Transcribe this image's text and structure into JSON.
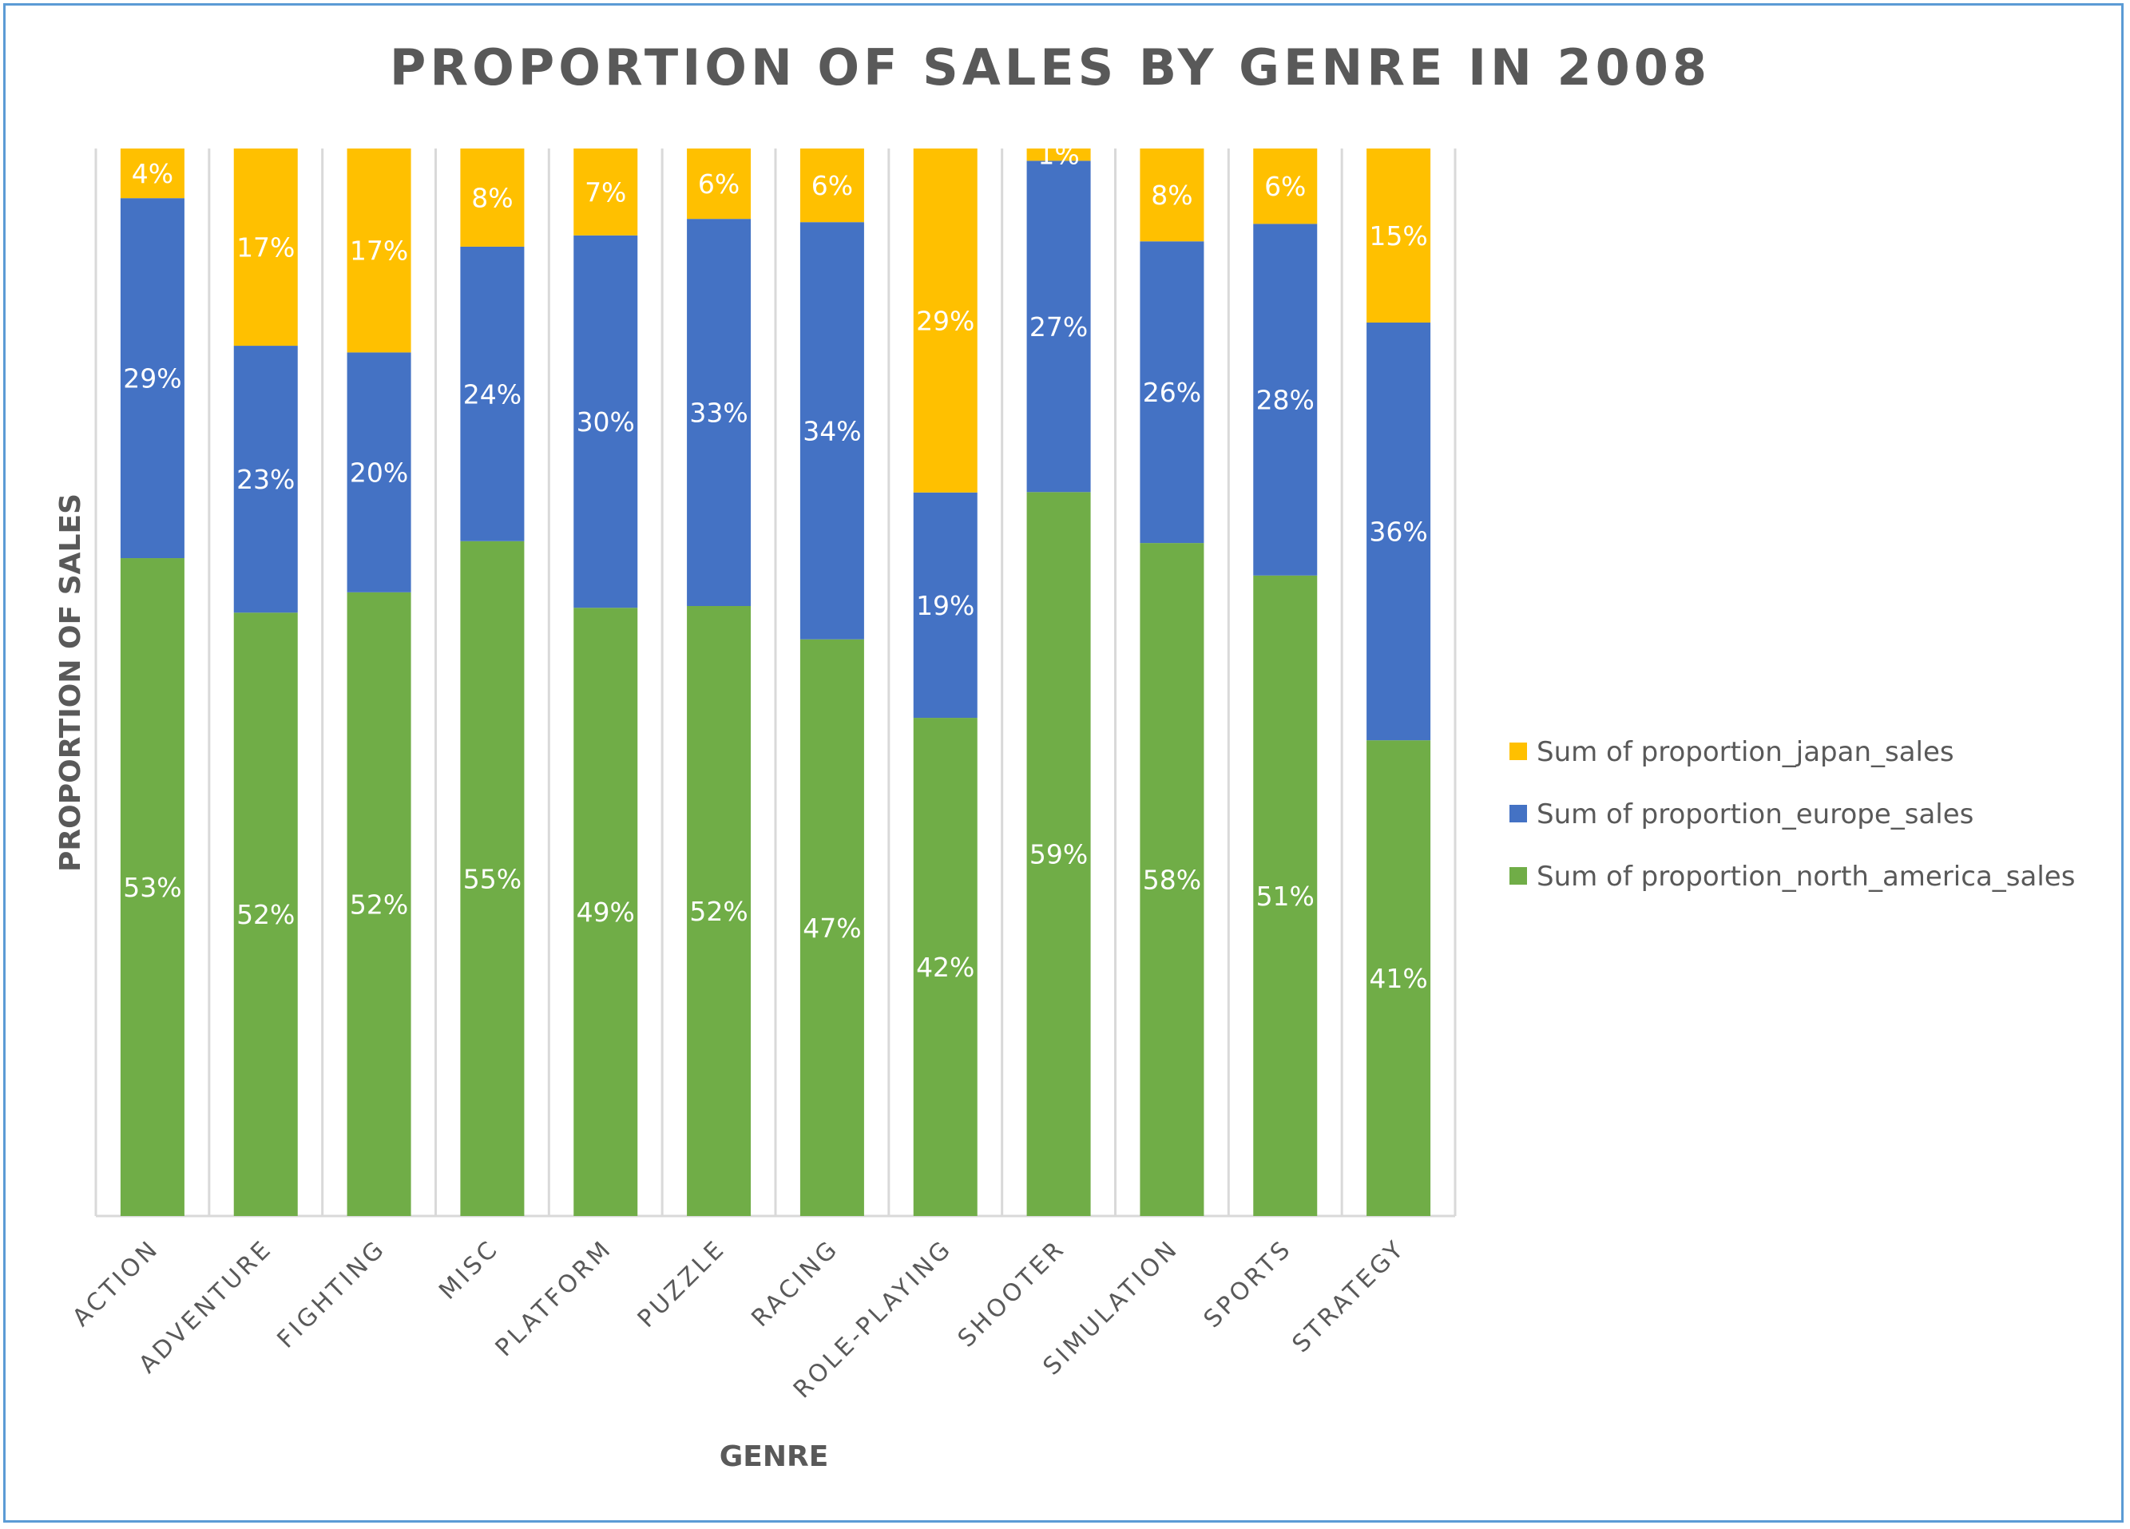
{
  "chart_data": {
    "type": "bar",
    "stacked": true,
    "title": "PROPORTION OF SALES BY GENRE IN 2008",
    "xlabel": "GENRE",
    "ylabel": "PROPORTION OF SALES",
    "categories": [
      "ACTION",
      "ADVENTURE",
      "FIGHTING",
      "MISC",
      "PLATFORM",
      "PUZZLE",
      "RACING",
      "ROLE-PLAYING",
      "SHOOTER",
      "SIMULATION",
      "SPORTS",
      "STRATEGY"
    ],
    "series": [
      {
        "name": "Sum of proportion_north_america_sales",
        "color": "#70ad47",
        "values": [
          0.53,
          0.52,
          0.52,
          0.55,
          0.49,
          0.52,
          0.47,
          0.42,
          0.59,
          0.58,
          0.51,
          0.41
        ],
        "labels": [
          "53%",
          "52%",
          "52%",
          "55%",
          "49%",
          "52%",
          "47%",
          "42%",
          "59%",
          "58%",
          "51%",
          "41%"
        ]
      },
      {
        "name": "Sum of proportion_europe_sales",
        "color": "#4472c4",
        "values": [
          0.29,
          0.23,
          0.2,
          0.24,
          0.3,
          0.33,
          0.34,
          0.19,
          0.27,
          0.26,
          0.28,
          0.36
        ],
        "labels": [
          "29%",
          "23%",
          "20%",
          "24%",
          "30%",
          "33%",
          "34%",
          "19%",
          "27%",
          "26%",
          "28%",
          "36%"
        ]
      },
      {
        "name": "Sum of proportion_japan_sales",
        "color": "#ffc000",
        "values": [
          0.04,
          0.17,
          0.17,
          0.08,
          0.07,
          0.06,
          0.06,
          0.29,
          0.01,
          0.08,
          0.06,
          0.15
        ],
        "labels": [
          "4%",
          "17%",
          "17%",
          "8%",
          "7%",
          "6%",
          "6%",
          "29%",
          "1%",
          "8%",
          "6%",
          "15%"
        ]
      }
    ],
    "legend_order": [
      "Sum of proportion_japan_sales",
      "Sum of proportion_europe_sales",
      "Sum of proportion_north_america_sales"
    ],
    "legend_position": "right",
    "grid": "vertical",
    "colors": {
      "title": "#595959",
      "axis_text": "#595959",
      "gridline": "#d9d9d9",
      "frame_border": "#5b9bd5",
      "data_label": "#ffffff"
    }
  }
}
